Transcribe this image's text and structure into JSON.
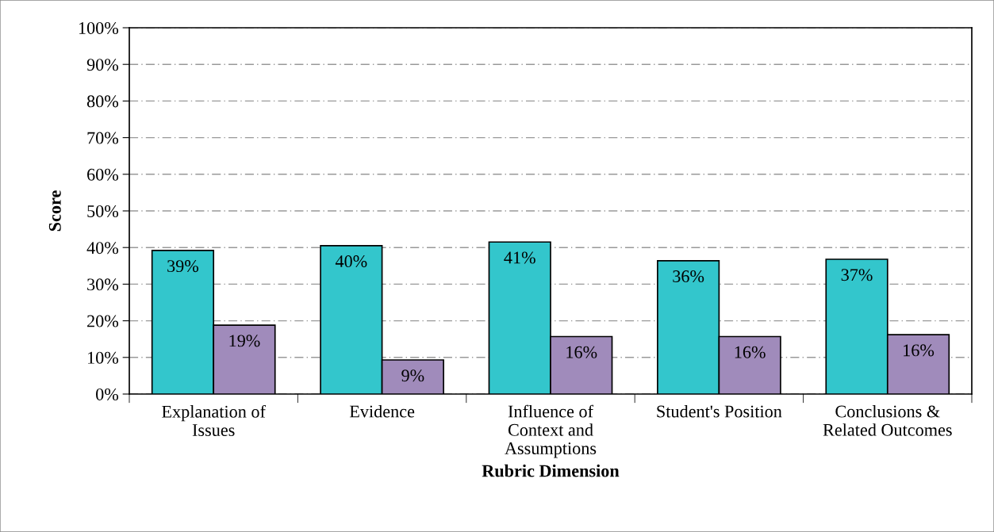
{
  "chart_data": {
    "type": "bar",
    "xlabel": "Rubric Dimension",
    "ylabel": "Score",
    "categories": [
      "Explanation of\nIssues",
      "Evidence",
      "Influence of\nContext and\nAssumptions",
      "Student's Position",
      "Conclusions &\nRelated Outcomes"
    ],
    "series": [
      {
        "color": "#33c6cc",
        "values": [
          39.2,
          40.5,
          41.5,
          36.4,
          36.8
        ],
        "value_labels": [
          "39%",
          "40%",
          "41%",
          "36%",
          "37%"
        ]
      },
      {
        "color": "#a08bbb",
        "values": [
          18.8,
          9.3,
          15.7,
          15.7,
          16.2
        ],
        "value_labels": [
          "19%",
          "9%",
          "16%",
          "16%",
          "16%"
        ]
      }
    ],
    "ylim": [
      0,
      100
    ],
    "yticks": [
      {
        "value": 0,
        "label": "0%"
      },
      {
        "value": 10,
        "label": "10%"
      },
      {
        "value": 20,
        "label": "20%"
      },
      {
        "value": 30,
        "label": "30%"
      },
      {
        "value": 40,
        "label": "40%"
      },
      {
        "value": 50,
        "label": "50%"
      },
      {
        "value": 60,
        "label": "60%"
      },
      {
        "value": 70,
        "label": "70%"
      },
      {
        "value": 80,
        "label": "80%"
      },
      {
        "value": 90,
        "label": "90%"
      },
      {
        "value": 100,
        "label": "100%"
      }
    ],
    "grid": "y",
    "legend": false
  }
}
